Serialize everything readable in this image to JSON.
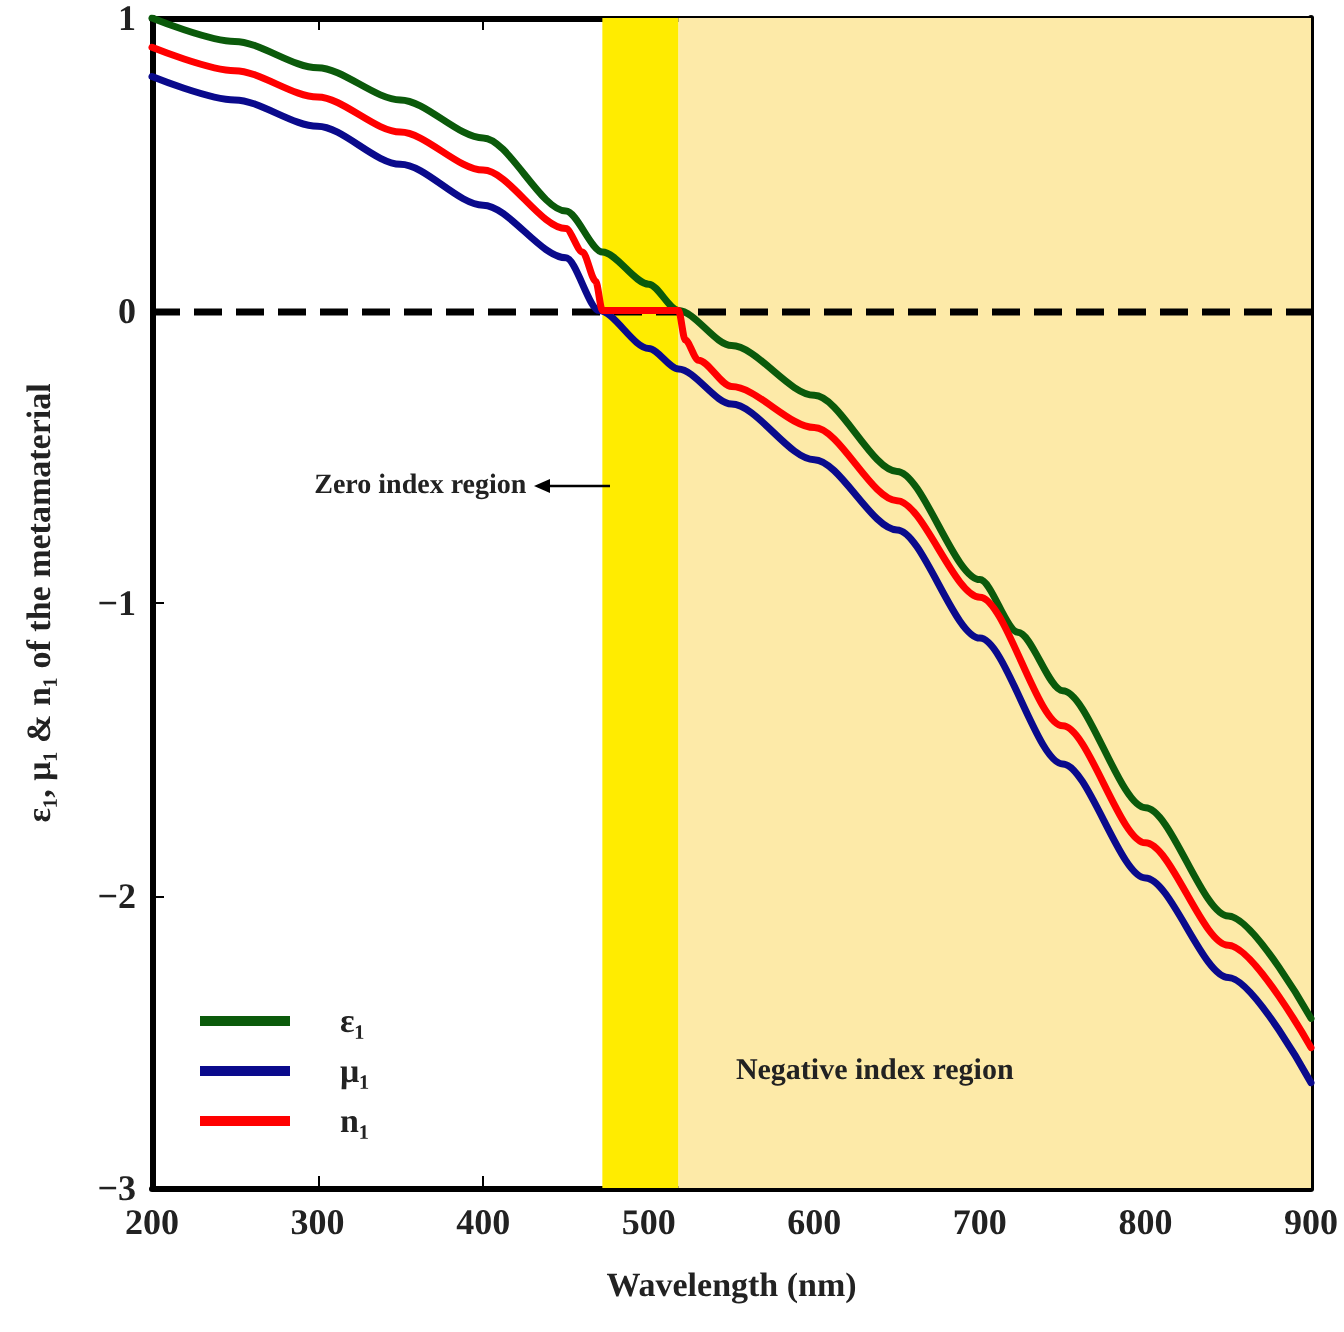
{
  "chart_data": {
    "type": "line",
    "xlabel": "Wavelength (nm)",
    "ylabel": "ε₁, μ₁ & n₁ of the metamaterial",
    "xlim": [
      200,
      900
    ],
    "xticks": [
      200,
      300,
      400,
      500,
      600,
      700,
      800,
      900
    ],
    "ylim": [
      -3,
      1
    ],
    "yticks": [
      -3,
      -2,
      -1,
      0,
      1
    ],
    "grid": false,
    "legend": "bottom left",
    "marker": "none",
    "line_style": "solid",
    "series": [
      {
        "name": "ε₁",
        "color": "#0b5a0b",
        "x": [
          200,
          250,
          300,
          350,
          400,
          450,
          472,
          500,
          518,
          550,
          600,
          650,
          700,
          723,
          750,
          800,
          850,
          900
        ],
        "values": [
          1.0,
          0.92,
          0.83,
          0.72,
          0.59,
          0.34,
          0.2,
          0.09,
          0.0,
          -0.12,
          -0.29,
          -0.55,
          -0.92,
          -1.1,
          -1.3,
          -1.7,
          -2.07,
          -2.42
        ]
      },
      {
        "name": "μ₁",
        "color": "#0a0a8c",
        "x": [
          200,
          250,
          300,
          350,
          400,
          450,
          470,
          500,
          518,
          550,
          600,
          650,
          700,
          750,
          800,
          850,
          900
        ],
        "values": [
          0.8,
          0.72,
          0.63,
          0.5,
          0.36,
          0.18,
          0.0,
          -0.13,
          -0.2,
          -0.32,
          -0.51,
          -0.75,
          -1.12,
          -1.55,
          -1.94,
          -2.28,
          -2.64
        ]
      },
      {
        "name": "n₁",
        "color": "#ff0000",
        "x": [
          200,
          250,
          300,
          350,
          400,
          450,
          460,
          468,
          472,
          518,
          522,
          530,
          550,
          600,
          650,
          700,
          750,
          800,
          850,
          900
        ],
        "values": [
          0.9,
          0.82,
          0.73,
          0.61,
          0.48,
          0.28,
          0.2,
          0.1,
          0.0,
          0.0,
          -0.1,
          -0.17,
          -0.26,
          -0.4,
          -0.65,
          -0.98,
          -1.42,
          -1.82,
          -2.17,
          -2.52
        ]
      }
    ],
    "ref_lines": [
      {
        "axis": "y",
        "value": 0,
        "color": "#000000",
        "line_style": "dashed"
      }
    ],
    "bands": [
      {
        "axis": "x",
        "from": 472,
        "to": 518,
        "label": "Zero index region",
        "color": "#ffec00"
      },
      {
        "axis": "x",
        "from": 518,
        "to": 900,
        "label": "Negative index region",
        "color": "#fdeaa8"
      }
    ]
  }
}
